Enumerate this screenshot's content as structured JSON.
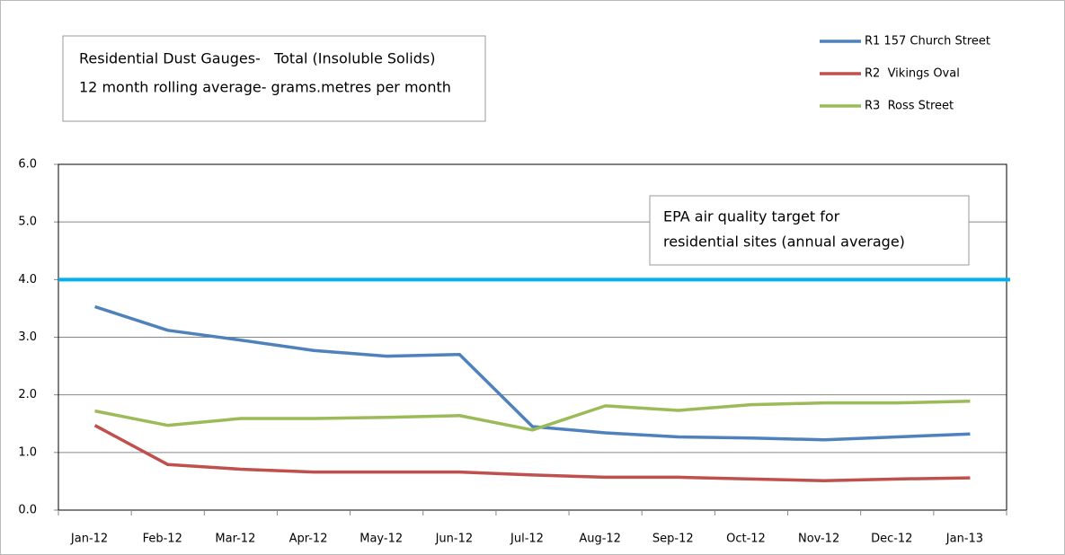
{
  "chart_data": {
    "type": "line",
    "title": "Residential Dust Gauges-   Total (Insoluble Solids)",
    "subtitle": "12 month rolling average- grams.metres per month",
    "categories": [
      "Jan-12",
      "Feb-12",
      "Mar-12",
      "Apr-12",
      "May-12",
      "Jun-12",
      "Jul-12",
      "Aug-12",
      "Sep-12",
      "Oct-12",
      "Nov-12",
      "Dec-12",
      "Jan-13"
    ],
    "series": [
      {
        "name": "R1 157 Church Street",
        "color": "#4f81bd",
        "values": [
          3.53,
          3.12,
          2.95,
          2.77,
          2.67,
          2.7,
          1.45,
          1.34,
          1.27,
          1.25,
          1.22,
          1.27,
          1.32
        ]
      },
      {
        "name": "R2  Vikings Oval",
        "color": "#c0504d",
        "values": [
          1.47,
          0.79,
          0.71,
          0.66,
          0.66,
          0.66,
          0.61,
          0.57,
          0.57,
          0.54,
          0.51,
          0.54,
          0.56
        ]
      },
      {
        "name": "R3  Ross Street",
        "color": "#9bbb59",
        "values": [
          1.72,
          1.47,
          1.59,
          1.59,
          1.61,
          1.64,
          1.39,
          1.81,
          1.73,
          1.83,
          1.86,
          1.86,
          1.89
        ]
      }
    ],
    "ylim": [
      0,
      6
    ],
    "yticks": [
      {
        "value": 0,
        "label": "0.0"
      },
      {
        "value": 1,
        "label": "1.0"
      },
      {
        "value": 2,
        "label": "2.0"
      },
      {
        "value": 3,
        "label": "3.0"
      },
      {
        "value": 4,
        "label": "4.0"
      },
      {
        "value": 5,
        "label": "5.0"
      },
      {
        "value": 6,
        "label": "6.0"
      }
    ],
    "grid": true,
    "legend": "top-right",
    "target_line": {
      "value": 4,
      "color": "#00b0f0"
    },
    "annotation": [
      "EPA air quality target for",
      "residential sites (annual average)"
    ]
  }
}
